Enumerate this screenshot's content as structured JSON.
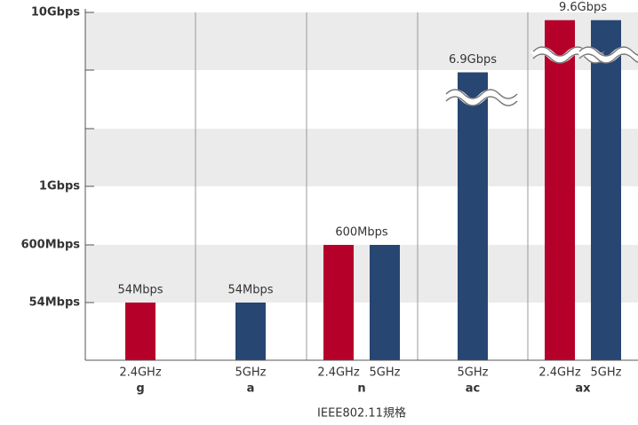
{
  "chart_data": {
    "type": "bar",
    "x_label": "IEEE802.11規格",
    "categories": [
      "g",
      "a",
      "n",
      "ac",
      "ax"
    ],
    "series": [
      {
        "name": "2.4GHz",
        "color": "#b5002a",
        "values": [
          54,
          null,
          600,
          null,
          9600
        ],
        "value_labels": [
          "54Mbps",
          null,
          "600Mbps",
          null,
          "9.6Gbps"
        ]
      },
      {
        "name": "5GHz",
        "color": "#274672",
        "values": [
          null,
          54,
          600,
          6900,
          9600
        ],
        "value_labels": [
          null,
          "54Mbps",
          null,
          "6.9Gbps",
          null
        ]
      }
    ],
    "ylim": [
      0,
      10000
    ],
    "yticks": [
      {
        "value": 54,
        "label": "54Mbps"
      },
      {
        "value": 600,
        "label": "600Mbps"
      },
      {
        "value": 1000,
        "label": "1Gbps"
      },
      {
        "value": 10000,
        "label": "10Gbps"
      }
    ],
    "ytick_color": "#b5002a"
  }
}
